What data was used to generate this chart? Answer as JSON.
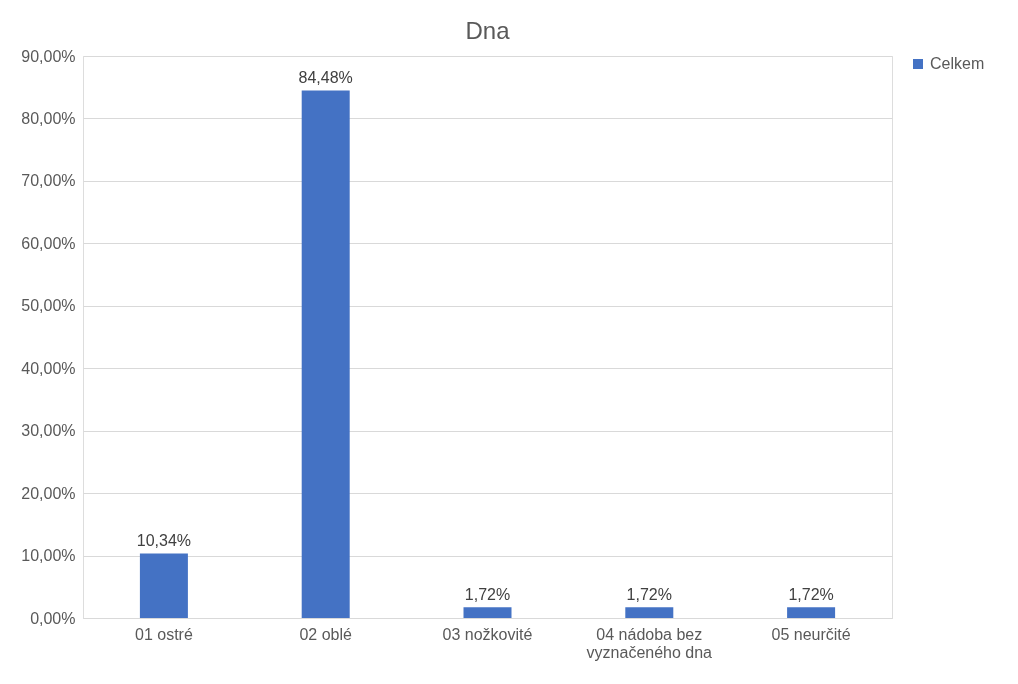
{
  "chart_data": {
    "type": "bar",
    "title": "Dna",
    "categories": [
      "01 ostré",
      "02 oblé",
      "03 nožkovité",
      "04 nádoba bez vyznačeného dna",
      "05 neurčité"
    ],
    "series": [
      {
        "name": "Celkem",
        "color": "#4472c4",
        "values": [
          10.34,
          84.48,
          1.72,
          1.72,
          1.72
        ],
        "value_labels": [
          "10,34%",
          "84,48%",
          "1,72%",
          "1,72%",
          "1,72%"
        ]
      }
    ],
    "ylim": [
      0,
      90
    ],
    "yticks": [
      {
        "value": 0,
        "label": "0,00%"
      },
      {
        "value": 10,
        "label": "10,00%"
      },
      {
        "value": 20,
        "label": "20,00%"
      },
      {
        "value": 30,
        "label": "30,00%"
      },
      {
        "value": 40,
        "label": "40,00%"
      },
      {
        "value": 50,
        "label": "50,00%"
      },
      {
        "value": 60,
        "label": "60,00%"
      },
      {
        "value": 70,
        "label": "70,00%"
      },
      {
        "value": 80,
        "label": "80,00%"
      },
      {
        "value": 90,
        "label": "90,00%"
      }
    ],
    "grid": "y",
    "legend": "right"
  }
}
